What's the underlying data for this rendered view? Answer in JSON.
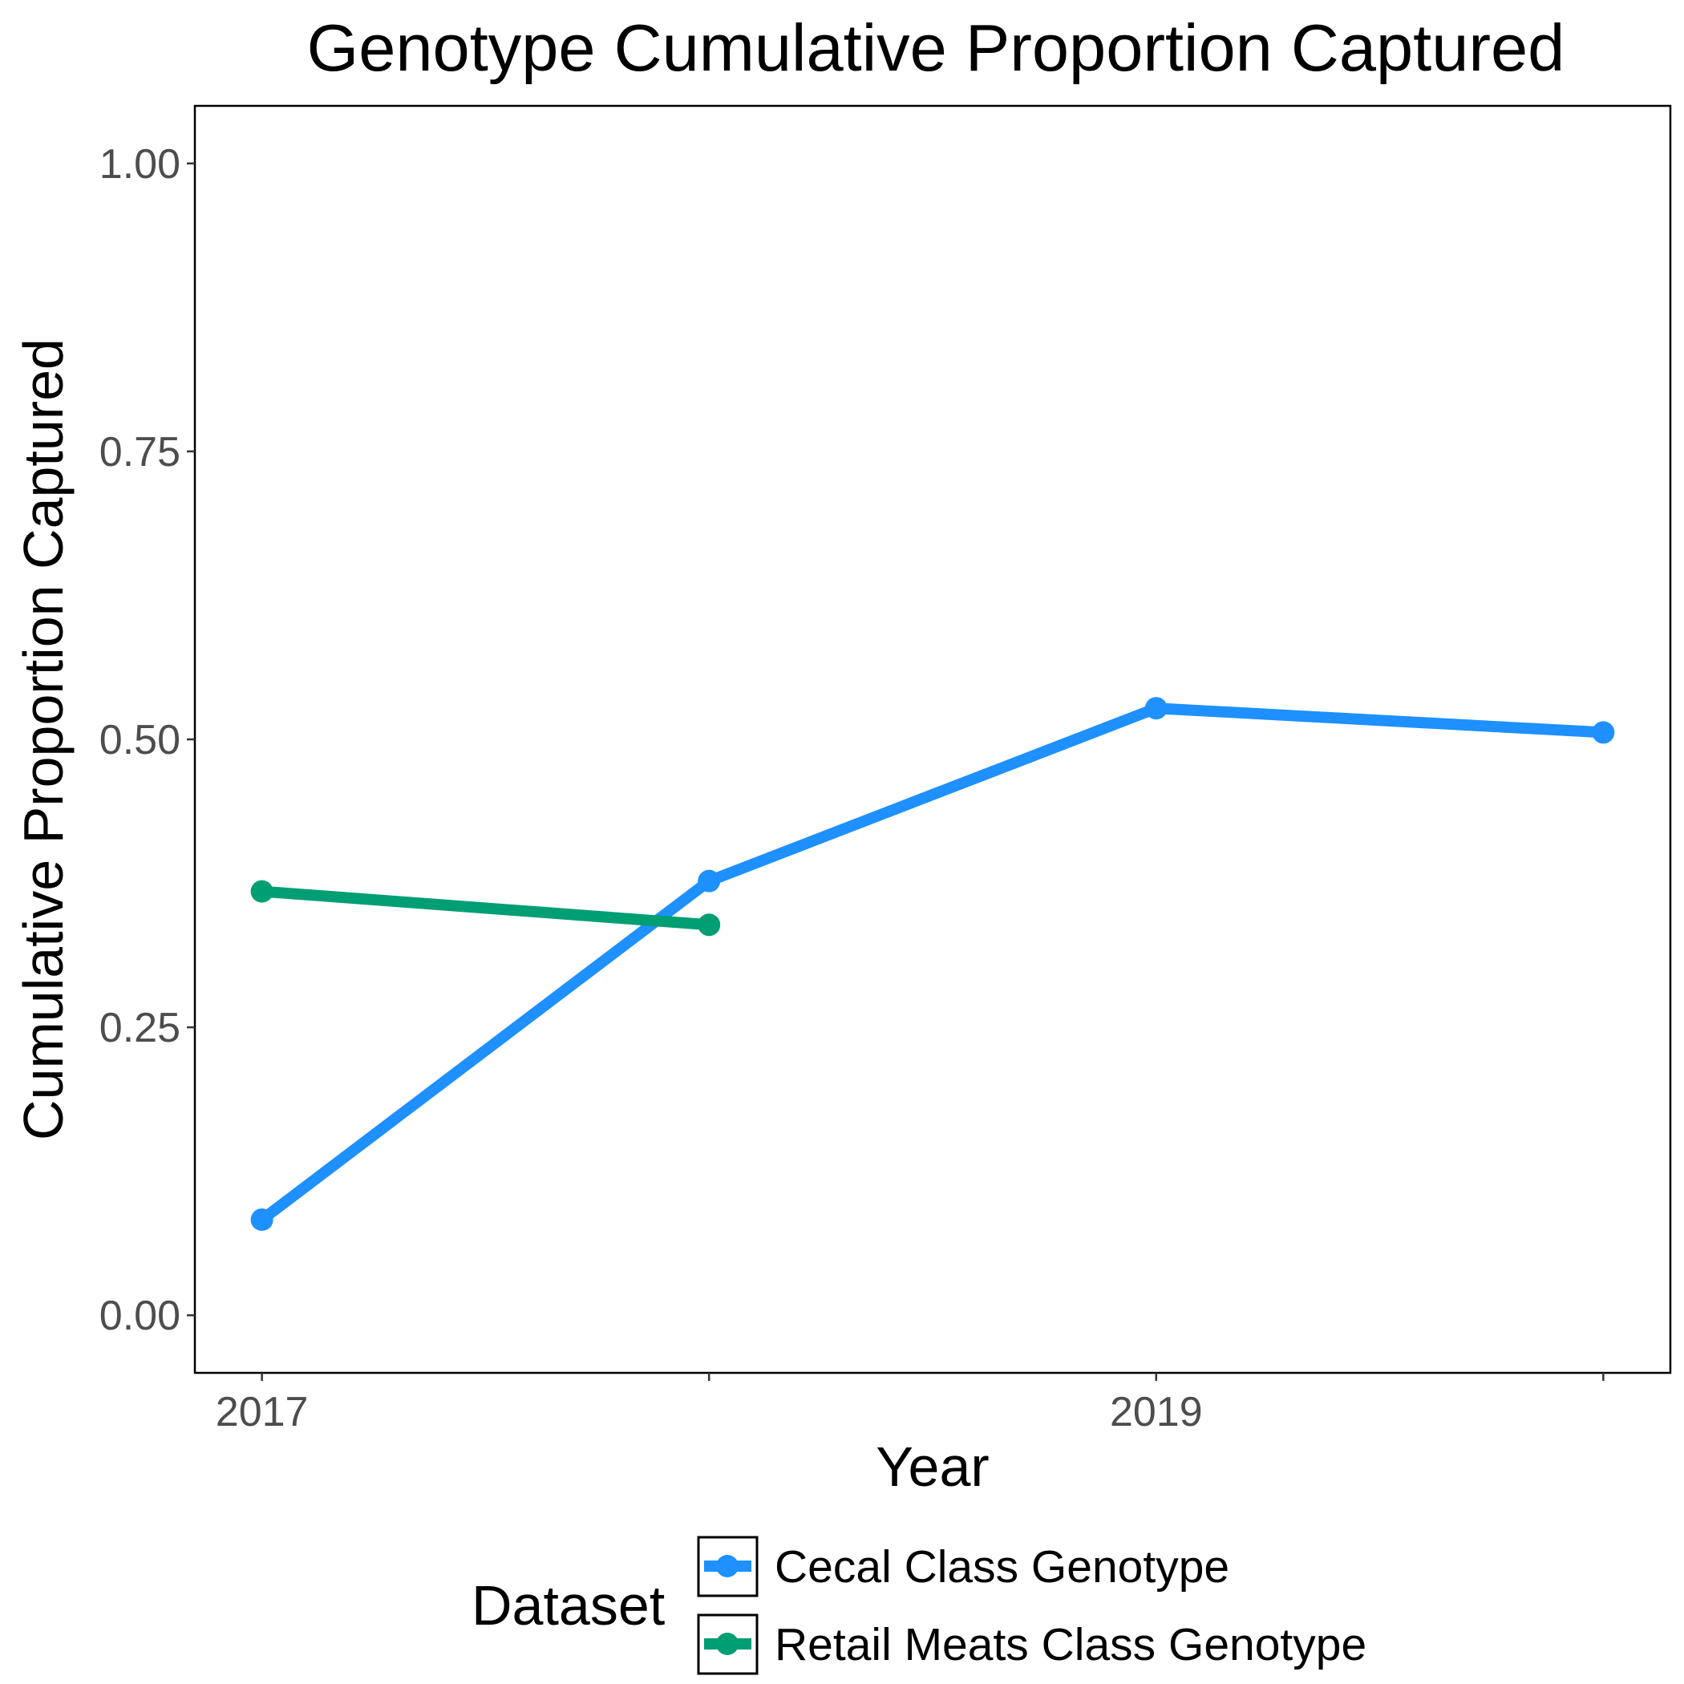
{
  "chart_data": {
    "type": "line",
    "title": "Genotype Cumulative Proportion Captured",
    "xlabel": "Year",
    "ylabel": "Cumulative Proportion Captured",
    "x_ticks": [
      2017,
      2019
    ],
    "x_tick_labels": [
      "2017",
      "2019"
    ],
    "y_ticks": [
      0.0,
      0.25,
      0.5,
      0.75,
      1.0
    ],
    "y_tick_labels": [
      "0.00",
      "0.25",
      "0.50",
      "0.75",
      "1.00"
    ],
    "xlim": [
      2016.85,
      2020.15
    ],
    "ylim": [
      -0.05,
      1.05
    ],
    "grid": false,
    "legend": {
      "title": "Dataset",
      "position": "bottom"
    },
    "series": [
      {
        "name": "Cecal Class Genotype",
        "color": "#1e90ff",
        "x": [
          2017,
          2018,
          2019,
          2020
        ],
        "y": [
          0.083,
          0.377,
          0.527,
          0.506
        ]
      },
      {
        "name": "Retail Meats Class Genotype",
        "color": "#009e73",
        "x": [
          2017,
          2018
        ],
        "y": [
          0.368,
          0.339
        ]
      }
    ]
  }
}
